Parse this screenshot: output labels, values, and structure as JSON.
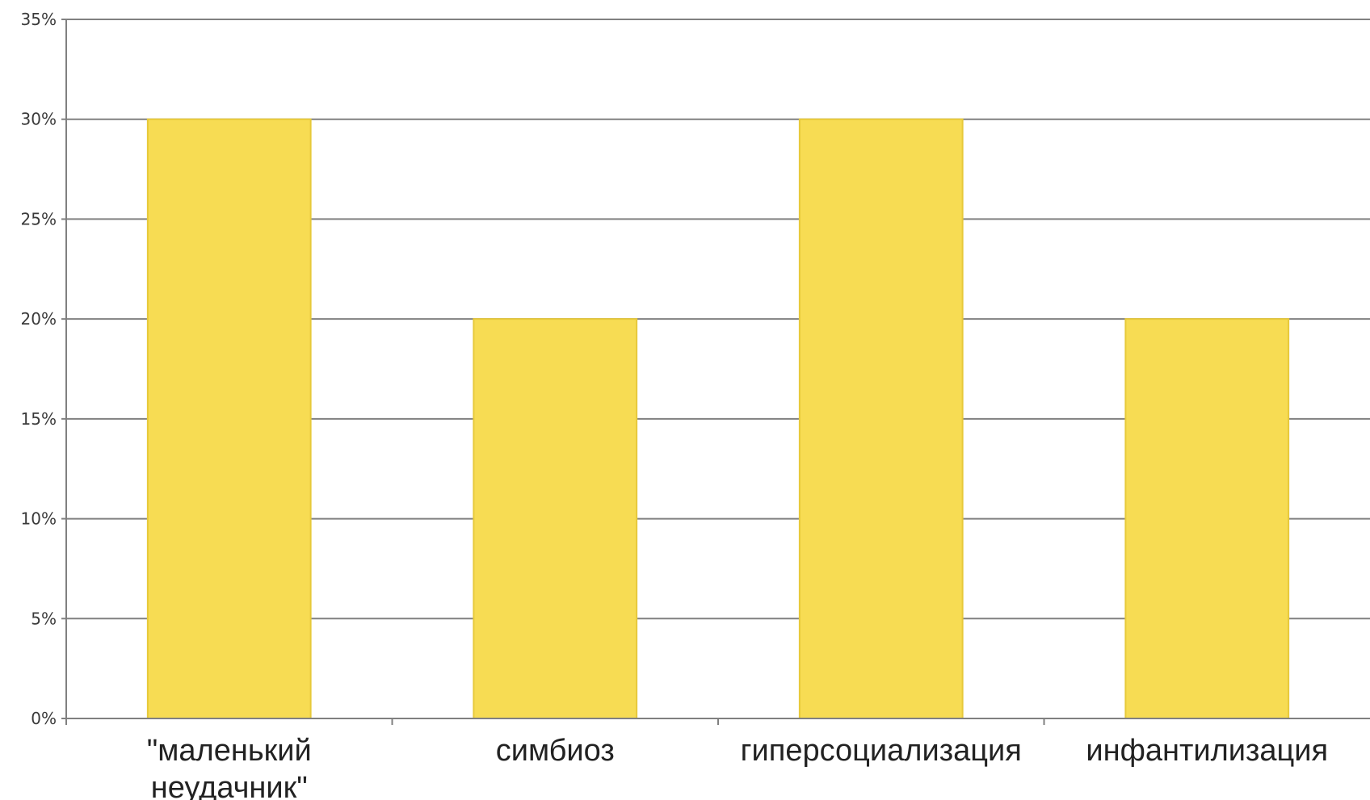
{
  "chart_data": {
    "type": "bar",
    "categories": [
      [
        "\"маленький",
        "неудачник\""
      ],
      [
        "симбиоз"
      ],
      [
        "гиперсоциализация"
      ],
      [
        "инфантилизация"
      ]
    ],
    "values": [
      30,
      20,
      30,
      20
    ],
    "ylim": [
      0,
      35
    ],
    "yticks": [
      "0%",
      "5%",
      "10%",
      "15%",
      "20%",
      "25%",
      "30%",
      "35%"
    ],
    "grid": true,
    "legend": "none",
    "title": "",
    "xlabel": "",
    "ylabel": "",
    "colors": {
      "bar_fill": "#F7DC53",
      "bar_stroke": "#E7C93A",
      "grid": "#808080",
      "axis": "#808080"
    }
  }
}
